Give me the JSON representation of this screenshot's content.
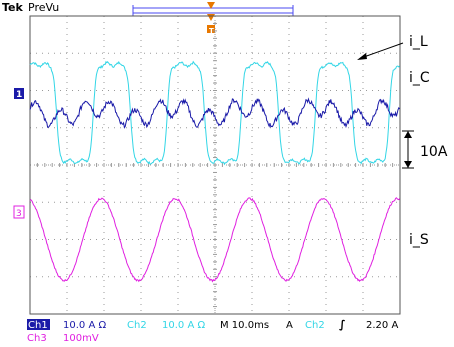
{
  "header": {
    "brand": "Tek",
    "mode": "PreVu"
  },
  "annotations": {
    "i_L": "i_L",
    "i_C": "i_C",
    "scale": "10A",
    "i_S": "i_S"
  },
  "channel_markers": {
    "ch1": "1",
    "ch3": "3"
  },
  "status": {
    "ch1_label": "Ch1",
    "ch1_scale": "10.0 A Ω",
    "ch2_label": "Ch2",
    "ch2_scale": "10.0 A Ω",
    "timebase": "M 10.0ms",
    "trigger_mode": "A",
    "trigger_source": "Ch2",
    "trigger_slope": "∫",
    "trigger_level": "2.20 A",
    "ch3_label": "Ch3",
    "ch3_scale": "100mV"
  },
  "colors": {
    "ch1": "#1a1aa8",
    "ch2": "#33d6e6",
    "ch3": "#e020e0",
    "grid": "#9a9a9a",
    "trigger": "#e87800"
  },
  "chart_data": {
    "type": "line",
    "x_unit": "ms",
    "x_range": [
      0,
      100
    ],
    "x_divisions": 10,
    "y_divisions": 8,
    "grid": true,
    "series": [
      {
        "name": "i_L",
        "channel": "Ch2",
        "shape": "quasi-square",
        "frequency_hz": 50,
        "peak_divisions": 1.3
      },
      {
        "name": "i_C",
        "channel": "Ch1",
        "shape": "ripple",
        "frequency_hz": 50,
        "peak_divisions": 0.4
      },
      {
        "name": "i_S",
        "channel": "Ch3",
        "shape": "sine",
        "frequency_hz": 50,
        "peak_divisions": 1.1
      }
    ]
  }
}
